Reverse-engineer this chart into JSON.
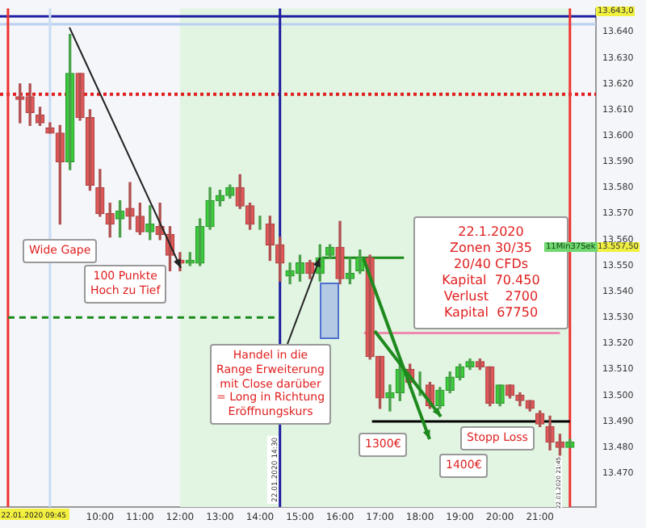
{
  "chart_data": {
    "type": "candlestick",
    "x": [
      8,
      8.25,
      8.5,
      8.75,
      9,
      9.25,
      9.5,
      9.75,
      10,
      10.25,
      10.5,
      10.75,
      11,
      11.25,
      11.5,
      11.75,
      12,
      12.25,
      12.5,
      12.75,
      13,
      13.25,
      13.5,
      13.75,
      14,
      14.25,
      14.5,
      14.75,
      15,
      15.25,
      15.5,
      15.75,
      16,
      16.25,
      16.5,
      16.75,
      17,
      17.25,
      17.5,
      17.75,
      18,
      18.25,
      18.5,
      18.75,
      19,
      19.25,
      19.5,
      19.75,
      20,
      20.25,
      20.5,
      20.75,
      21,
      21.25,
      21.5,
      21.75
    ],
    "ohlc": [
      [
        13615,
        13620,
        13605,
        13614
      ],
      [
        13615,
        13620,
        13604,
        13609
      ],
      [
        13608,
        13611,
        13604,
        13605
      ],
      [
        13603,
        13605,
        13601,
        13601
      ],
      [
        13601,
        13604,
        13566,
        13590
      ],
      [
        13590,
        13639,
        13587,
        13624
      ],
      [
        13624,
        13624,
        13606,
        13607
      ],
      [
        13607,
        13610,
        13579,
        13581
      ],
      [
        13580,
        13587,
        13569,
        13570
      ],
      [
        13570,
        13574,
        13561,
        13566
      ],
      [
        13568,
        13575,
        13561,
        13571
      ],
      [
        13572,
        13582,
        13564,
        13569
      ],
      [
        13569,
        13574,
        13562,
        13563
      ],
      [
        13563,
        13573,
        13560,
        13566
      ],
      [
        13565,
        13574,
        13560,
        13562
      ],
      [
        13562,
        13565,
        13548,
        13554
      ],
      [
        13552,
        13555,
        13548,
        13551
      ],
      [
        13551,
        13555,
        13550,
        13552
      ],
      [
        13551,
        13568,
        13550,
        13565
      ],
      [
        13565,
        13580,
        13564,
        13575
      ],
      [
        13575,
        13579,
        13573,
        13577
      ],
      [
        13577,
        13581,
        13576,
        13580
      ],
      [
        13580,
        13585,
        13572,
        13573
      ],
      [
        13573,
        13574,
        13564,
        13566
      ],
      [
        13566,
        13569,
        13564,
        13566
      ],
      [
        13566,
        13569,
        13552,
        13558
      ],
      [
        13558,
        13561,
        13544,
        13551
      ],
      [
        13546,
        13551,
        13543,
        13548
      ],
      [
        13547,
        13554,
        13544,
        13551
      ],
      [
        13551,
        13552,
        13545,
        13547
      ],
      [
        13547,
        13558,
        13544,
        13553
      ],
      [
        13554,
        13558,
        13553,
        13557
      ],
      [
        13557,
        13567,
        13543,
        13545
      ],
      [
        13545,
        13553,
        13543,
        13547
      ],
      [
        13548,
        13556,
        13547,
        13553
      ],
      [
        13553,
        13554,
        13514,
        13515
      ],
      [
        13515,
        13515,
        13495,
        13499
      ],
      [
        13499,
        13504,
        13494,
        13501
      ],
      [
        13501,
        13512,
        13498,
        13510
      ],
      [
        13510,
        13512,
        13503,
        13505
      ],
      [
        13505,
        13509,
        13500,
        13505
      ],
      [
        13504,
        13505,
        13495,
        13496
      ],
      [
        13496,
        13503,
        13495,
        13502
      ],
      [
        13502,
        13509,
        13501,
        13507
      ],
      [
        13507,
        13512,
        13506,
        13511
      ],
      [
        13511,
        13514,
        13510,
        13513
      ],
      [
        13513,
        13514,
        13510,
        13511
      ],
      [
        13511,
        13511,
        13496,
        13497
      ],
      [
        13497,
        13504,
        13496,
        13504
      ],
      [
        13504,
        13504,
        13499,
        13500
      ],
      [
        13500,
        13501,
        13496,
        13498
      ],
      [
        13498,
        13498,
        13494,
        13495
      ],
      [
        13493,
        13494,
        13488,
        13489
      ],
      [
        13488,
        13492,
        13479,
        13482
      ],
      [
        13482,
        13485,
        13477,
        13480
      ],
      [
        13480,
        13483,
        13480,
        13482
      ]
    ],
    "series": [
      {
        "type": "line",
        "x": [
          7.7,
          14.4
        ],
        "values": [
          13530,
          13530
        ],
        "color": "#1a8a1a",
        "line_style": "dashed"
      },
      {
        "type": "line",
        "x": [
          15.55,
          17.6
        ],
        "values": [
          13553,
          13553
        ],
        "color": "#1a8a1a",
        "line_style": "solid"
      },
      {
        "type": "line",
        "x": [
          16.6,
          21.5
        ],
        "values": [
          13524,
          13524
        ],
        "color": "#f08ab0",
        "line_style": "solid"
      },
      {
        "type": "line",
        "x": [
          16.8,
          21.75
        ],
        "values": [
          13490,
          13490
        ],
        "color": "#000000",
        "line_style": "solid"
      }
    ],
    "ref_lines": [
      {
        "axis": "y",
        "value": 13616,
        "color": "#e02020",
        "line_style": "dotted"
      },
      {
        "axis": "y",
        "value": 13646,
        "color": "#1c1ca0",
        "line_style": "solid"
      },
      {
        "axis": "y",
        "value": 13643,
        "color": "#b8d0f0",
        "line_style": "solid"
      },
      {
        "axis": "x",
        "value": 7.7,
        "color": "#f03030",
        "line_style": "solid"
      },
      {
        "axis": "x",
        "value": 8.75,
        "color": "#c8dcf4",
        "line_style": "solid",
        "label": "22.01.2020 09:45"
      },
      {
        "axis": "x",
        "value": 14.5,
        "color": "#1c1ca0",
        "line_style": "solid",
        "label": "22.01.2020 14:30"
      },
      {
        "axis": "x",
        "value": 21.75,
        "color": "#f03030",
        "line_style": "solid"
      }
    ],
    "bands": [
      {
        "axis": "x",
        "from": 12,
        "to": 21.75,
        "color": "#e2f4e2"
      }
    ],
    "xlim": [
      7.5,
      22.4
    ],
    "xticks": [
      {
        "value": 10,
        "label": "10:00"
      },
      {
        "value": 11,
        "label": "11:00"
      },
      {
        "value": 12,
        "label": "12:00"
      },
      {
        "value": 13,
        "label": "13:00"
      },
      {
        "value": 14,
        "label": "14:00"
      },
      {
        "value": 15,
        "label": "15:00"
      },
      {
        "value": 16,
        "label": "16:00"
      },
      {
        "value": 17,
        "label": "17:00"
      },
      {
        "value": 18,
        "label": "18:00"
      },
      {
        "value": 19,
        "label": "19:00"
      },
      {
        "value": 20,
        "label": "20:00"
      },
      {
        "value": 21,
        "label": "21:00"
      }
    ],
    "ylim": [
      13457,
      13649
    ],
    "yticks": [
      {
        "value": 13470,
        "label": "13.470"
      },
      {
        "value": 13480,
        "label": "13.480"
      },
      {
        "value": 13490,
        "label": "13.490"
      },
      {
        "value": 13500,
        "label": "13.500"
      },
      {
        "value": 13510,
        "label": "13.510"
      },
      {
        "value": 13520,
        "label": "13.520"
      },
      {
        "value": 13530,
        "label": "13.530"
      },
      {
        "value": 13540,
        "label": "13.540"
      },
      {
        "value": 13550,
        "label": "13.550"
      },
      {
        "value": 13560,
        "label": "13.560"
      },
      {
        "value": 13570,
        "label": "13.570"
      },
      {
        "value": 13580,
        "label": "13.580"
      },
      {
        "value": 13590,
        "label": "13.590"
      },
      {
        "value": 13600,
        "label": "13.600"
      },
      {
        "value": 13610,
        "label": "13.610"
      },
      {
        "value": 13620,
        "label": "13.620"
      },
      {
        "value": 13630,
        "label": "13.630"
      },
      {
        "value": 13640,
        "label": "13.640"
      }
    ],
    "grid": false,
    "legend": false,
    "annotations": [
      "Wide Gape",
      "100 Punkte\nHoch zu Tief",
      {
        "text": "Handel in die\nRange Erweiterung\nmit Close darüber\n= Long in Richtung\nEröffnungskurs",
        "x": 15.5,
        "y": 13553
      },
      "22.1.2020\nZonen 30/35\n20/40 CFDs\nKapital  70.450\nVerlust    2700\nKapital  67750",
      "1300€",
      "1400€",
      "Stopp Loss",
      "13.643,0",
      "13.557,50",
      "11Min37Sek",
      "22.01.2020 21:45"
    ]
  }
}
